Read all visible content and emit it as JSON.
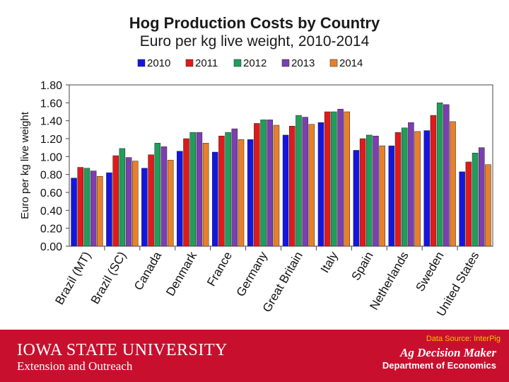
{
  "chart_data": {
    "type": "bar",
    "title": "Hog Production Costs by Country",
    "subtitle": "Euro per kg live weight, 2010-2014",
    "ylabel": "Euro per kg live weight",
    "xlabel": "",
    "ylim": [
      0,
      1.8
    ],
    "ytick_step": 0.2,
    "grid": false,
    "legend_position": "top",
    "categories": [
      "Brazil (MT)",
      "Brazil (SC)",
      "Canada",
      "Denmark",
      "France",
      "Germany",
      "Great Britain",
      "Italy",
      "Spain",
      "Netherlands",
      "Sweden",
      "United States"
    ],
    "series": [
      {
        "name": "2010",
        "color": "#1515e0",
        "values": [
          0.76,
          0.82,
          0.87,
          1.06,
          1.05,
          1.19,
          1.24,
          1.38,
          1.07,
          1.12,
          1.29,
          0.83
        ]
      },
      {
        "name": "2011",
        "color": "#e01a1a",
        "values": [
          0.88,
          1.01,
          1.02,
          1.2,
          1.23,
          1.37,
          1.34,
          1.5,
          1.2,
          1.27,
          1.46,
          0.94
        ]
      },
      {
        "name": "2012",
        "color": "#1f9e5a",
        "values": [
          0.87,
          1.09,
          1.15,
          1.27,
          1.27,
          1.41,
          1.46,
          1.5,
          1.24,
          1.32,
          1.6,
          1.04
        ]
      },
      {
        "name": "2013",
        "color": "#7b3fb0",
        "values": [
          0.84,
          0.99,
          1.11,
          1.27,
          1.31,
          1.41,
          1.44,
          1.53,
          1.23,
          1.38,
          1.58,
          1.1
        ]
      },
      {
        "name": "2014",
        "color": "#e8802a",
        "values": [
          0.78,
          0.95,
          0.96,
          1.15,
          1.19,
          1.35,
          1.36,
          1.5,
          1.12,
          1.28,
          1.39,
          0.91
        ]
      }
    ]
  },
  "footer": {
    "source": "Data Source: InterPig",
    "university": "IOWA STATE UNIVERSITY",
    "unit": "Extension and Outreach",
    "program": "Ag Decision Maker",
    "department": "Department of Economics"
  }
}
